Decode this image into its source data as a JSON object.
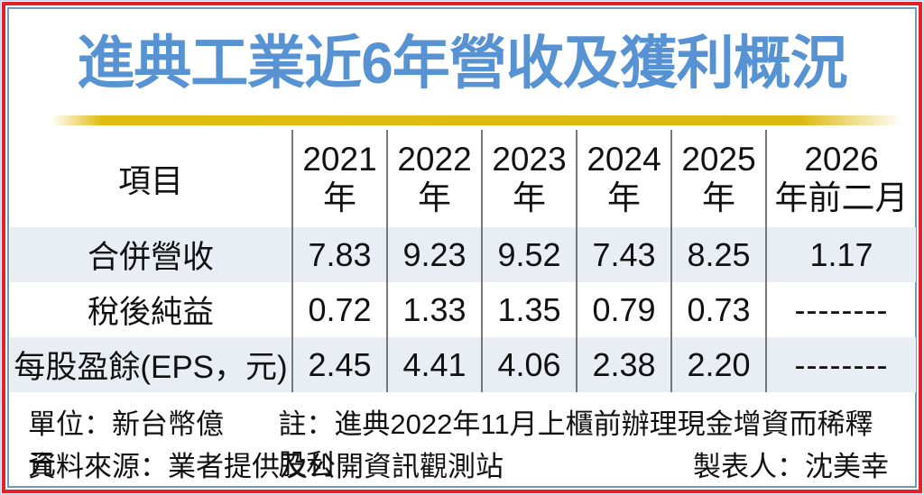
{
  "title": "進典工業近6年營收及獲利概況",
  "table": {
    "item_header": "項目",
    "year_headers": [
      {
        "line1": "2021",
        "line2": "年"
      },
      {
        "line1": "2022",
        "line2": "年"
      },
      {
        "line1": "2023",
        "line2": "年"
      },
      {
        "line1": "2024",
        "line2": "年"
      },
      {
        "line1": "2025",
        "line2": "年"
      },
      {
        "line1": "2026",
        "line2": "年前二月"
      }
    ],
    "rows": [
      {
        "label": "合併營收",
        "values": [
          "7.83",
          "9.23",
          "9.52",
          "7.43",
          "8.25",
          "1.17"
        ]
      },
      {
        "label": "稅後純益",
        "values": [
          "0.72",
          "1.33",
          "1.35",
          "0.79",
          "0.73",
          "--------"
        ]
      },
      {
        "label": "每股盈餘(EPS，元)",
        "values": [
          "2.45",
          "4.41",
          "4.06",
          "2.38",
          "2.20",
          "--------"
        ]
      }
    ]
  },
  "footer": {
    "unit": "單位：新台幣億元",
    "note": "註：進典2022年11月上櫃前辦理現金增資而稀釋股利",
    "source": "資料來源：業者提供及公開資訊觀測站",
    "author": "製表人：沈美幸"
  },
  "colors": {
    "title_blue": "#5792d3",
    "frame_red": "#e6202b",
    "frame_blue": "#6f99c4",
    "gold_bar": "#e0bc10",
    "row_shade": "#e9eef4",
    "divider_gray": "#777777"
  },
  "chart_data": {
    "type": "table",
    "title": "進典工業近6年營收及獲利概況",
    "categories": [
      "2021年",
      "2022年",
      "2023年",
      "2024年",
      "2025年",
      "2026年前二月"
    ],
    "series": [
      {
        "name": "合併營收",
        "values": [
          7.83,
          9.23,
          9.52,
          7.43,
          8.25,
          1.17
        ]
      },
      {
        "name": "稅後純益",
        "values": [
          0.72,
          1.33,
          1.35,
          0.79,
          0.73,
          null
        ]
      },
      {
        "name": "每股盈餘(EPS，元)",
        "values": [
          2.45,
          4.41,
          4.06,
          2.38,
          2.2,
          null
        ]
      }
    ],
    "unit": "新台幣億元",
    "note": "進典2022年11月上櫃前辦理現金增資而稀釋股利",
    "source": "業者提供及公開資訊觀測站",
    "author": "沈美幸"
  }
}
